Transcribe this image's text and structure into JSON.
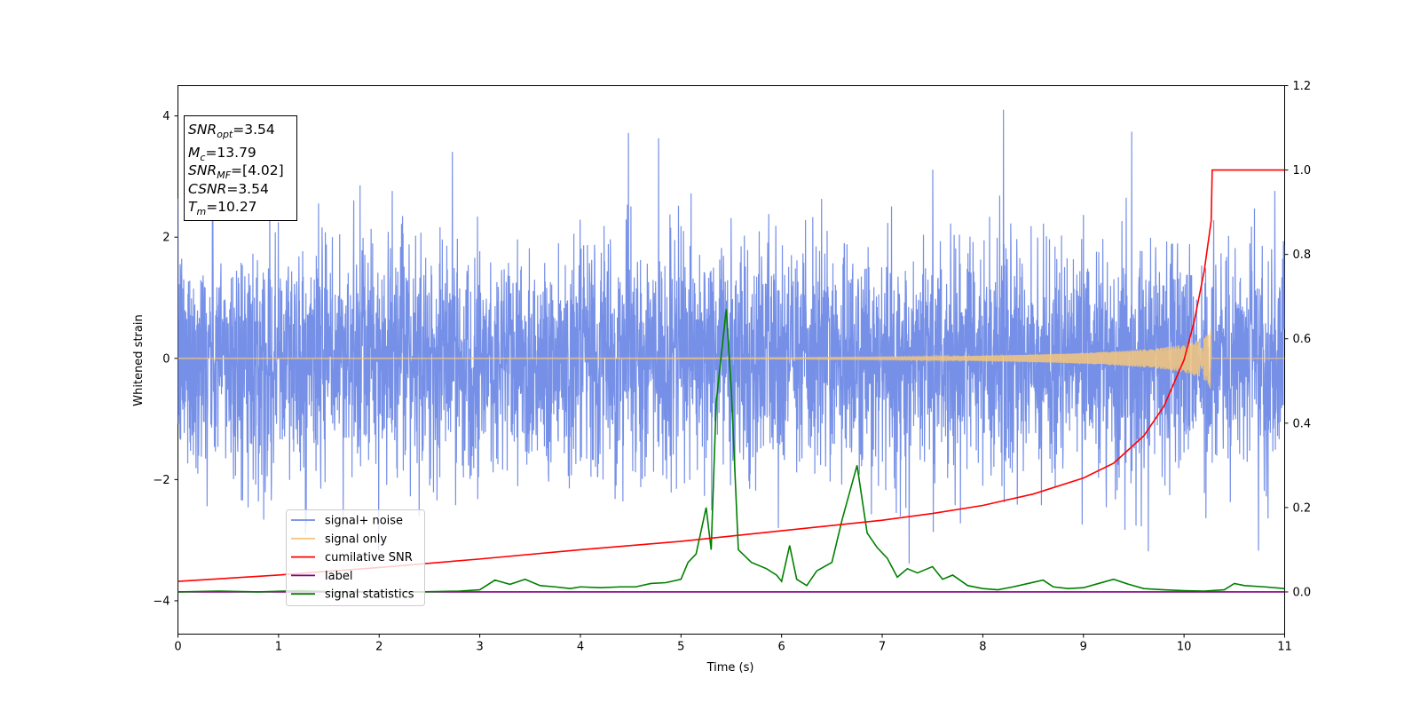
{
  "chart_data": {
    "type": "line",
    "xlabel": "Time (s)",
    "ylabel": "Whitened strain",
    "xlim": [
      0,
      11
    ],
    "ylim": [
      -4.55,
      4.5
    ],
    "y2lim": [
      -0.1,
      1.2
    ],
    "x_ticks": [
      0,
      1,
      2,
      3,
      4,
      5,
      6,
      7,
      8,
      9,
      10,
      11
    ],
    "y_ticks": [
      -4,
      -2,
      0,
      2,
      4
    ],
    "y2_ticks": [
      0.0,
      0.2,
      0.4,
      0.6,
      0.8,
      1.0,
      1.2
    ],
    "x_tick_labels": [
      "0",
      "1",
      "2",
      "3",
      "4",
      "5",
      "6",
      "7",
      "8",
      "9",
      "10",
      "11"
    ],
    "y_tick_labels": [
      "−4",
      "−2",
      "0",
      "2",
      "4"
    ],
    "y2_tick_labels": [
      "0.0",
      "0.2",
      "0.4",
      "0.6",
      "0.8",
      "1.0",
      "1.2"
    ],
    "info_box": {
      "lines": [
        {
          "base": "SNR",
          "sub": "opt",
          "value": "=3.54"
        },
        {
          "base": "M",
          "sub": "c",
          "value": "=13.79"
        },
        {
          "base": "SNR",
          "sub": "MF",
          "value": "=[4.02]"
        },
        {
          "base": "CSNR",
          "sub": "",
          "value": "=3.54"
        },
        {
          "base": "T",
          "sub": "m",
          "value": "=10.27"
        }
      ]
    },
    "legend_position": "lower-left",
    "grid": false,
    "series": [
      {
        "name": "signal+ noise",
        "color": "#6f8ae6",
        "axis": "left",
        "description_values": {
          "typical_range": [
            -2.5,
            2.5
          ],
          "peak_max": 4.1,
          "peak_min": -4.15
        }
      },
      {
        "name": "signal only",
        "color": "#f5c77a",
        "axis": "left",
        "chirp_end": 10.27,
        "chirp_max_amplitude": 0.6
      },
      {
        "name": "cumilative SNR",
        "color": "#ff0000",
        "axis": "right",
        "x": [
          0,
          1,
          2,
          3,
          4,
          5,
          6,
          7,
          7.5,
          8,
          8.5,
          9,
          9.3,
          9.6,
          9.8,
          10.0,
          10.1,
          10.2,
          10.27,
          10.28,
          11
        ],
        "y": [
          0.025,
          0.04,
          0.058,
          0.078,
          0.1,
          0.12,
          0.145,
          0.17,
          0.186,
          0.205,
          0.232,
          0.27,
          0.305,
          0.37,
          0.44,
          0.55,
          0.64,
          0.76,
          0.88,
          1.0,
          1.0
        ]
      },
      {
        "name": "label",
        "color": "#800080",
        "axis": "right",
        "x": [
          0,
          11
        ],
        "y": [
          0.0,
          0.0
        ]
      },
      {
        "name": "signal statistics",
        "color": "#008000",
        "axis": "right",
        "x": [
          0,
          0.4,
          0.8,
          1.2,
          1.6,
          2.0,
          2.4,
          2.8,
          3.0,
          3.15,
          3.3,
          3.45,
          3.6,
          3.75,
          3.9,
          4.0,
          4.2,
          4.4,
          4.55,
          4.7,
          4.85,
          5.0,
          5.07,
          5.15,
          5.25,
          5.3,
          5.35,
          5.45,
          5.5,
          5.57,
          5.7,
          5.85,
          5.95,
          6.0,
          6.08,
          6.15,
          6.25,
          6.35,
          6.5,
          6.6,
          6.75,
          6.85,
          6.95,
          7.05,
          7.15,
          7.25,
          7.35,
          7.5,
          7.6,
          7.7,
          7.85,
          8.0,
          8.15,
          8.3,
          8.45,
          8.6,
          8.7,
          8.85,
          9.0,
          9.15,
          9.3,
          9.45,
          9.6,
          9.8,
          10.0,
          10.2,
          10.4,
          10.5,
          10.6,
          10.8,
          11.0
        ],
        "y": [
          0.0,
          0.002,
          0.0,
          0.003,
          0.0,
          0.001,
          0.0,
          0.002,
          0.005,
          0.028,
          0.018,
          0.03,
          0.015,
          0.012,
          0.008,
          0.012,
          0.01,
          0.012,
          0.012,
          0.02,
          0.022,
          0.03,
          0.07,
          0.09,
          0.2,
          0.1,
          0.45,
          0.67,
          0.48,
          0.1,
          0.07,
          0.055,
          0.04,
          0.025,
          0.11,
          0.03,
          0.015,
          0.05,
          0.07,
          0.17,
          0.3,
          0.14,
          0.105,
          0.08,
          0.035,
          0.055,
          0.045,
          0.06,
          0.03,
          0.04,
          0.015,
          0.008,
          0.005,
          0.012,
          0.02,
          0.028,
          0.012,
          0.008,
          0.01,
          0.02,
          0.03,
          0.018,
          0.008,
          0.005,
          0.003,
          0.002,
          0.005,
          0.02,
          0.015,
          0.012,
          0.008
        ]
      }
    ]
  }
}
